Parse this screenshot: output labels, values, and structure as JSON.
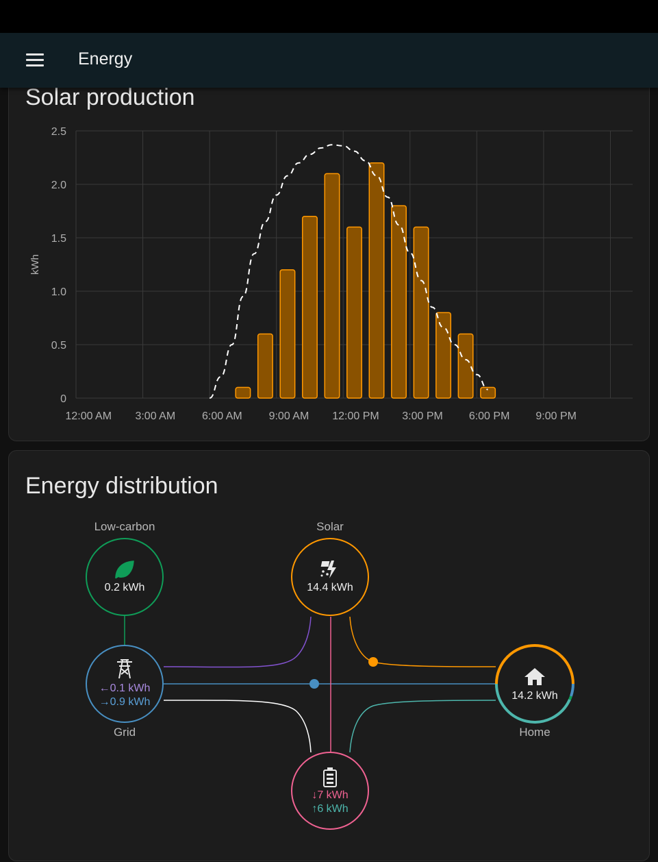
{
  "header": {
    "title": "Energy",
    "menu_icon": "menu-icon"
  },
  "solar_card": {
    "title": "Solar production"
  },
  "chart_data": {
    "type": "bar",
    "ylabel": "kWh",
    "ylim": [
      0,
      2.5
    ],
    "y_ticks": [
      "0",
      "0.5",
      "1.0",
      "1.5",
      "2.0",
      "2.5"
    ],
    "x_tick_labels": [
      "12:00 AM",
      "3:00 AM",
      "6:00 AM",
      "9:00 AM",
      "12:00 PM",
      "3:00 PM",
      "6:00 PM",
      "9:00 PM"
    ],
    "series": [
      {
        "type": "bar",
        "hours": [
          7,
          8,
          9,
          10,
          11,
          12,
          13,
          14,
          15,
          16,
          17,
          18
        ],
        "values": [
          0.1,
          0.6,
          1.2,
          1.7,
          2.1,
          1.6,
          2.2,
          1.8,
          1.6,
          0.8,
          0.6,
          0.1
        ]
      },
      {
        "type": "line",
        "style": "dashed",
        "hours": [
          6.0,
          6.5,
          7.0,
          7.5,
          8.0,
          8.5,
          9.0,
          9.5,
          10.0,
          10.5,
          11.0,
          11.5,
          12.0,
          12.5,
          13.0,
          13.5,
          14.0,
          14.5,
          15.0,
          15.5,
          16.0,
          16.5,
          17.0,
          17.5,
          18.0,
          18.5
        ],
        "values": [
          0.0,
          0.2,
          0.5,
          0.95,
          1.35,
          1.65,
          1.9,
          2.08,
          2.2,
          2.28,
          2.34,
          2.37,
          2.36,
          2.31,
          2.22,
          2.08,
          1.88,
          1.62,
          1.36,
          1.1,
          0.85,
          0.66,
          0.5,
          0.36,
          0.22,
          0.08
        ]
      }
    ],
    "colors": {
      "bar_fill": "#8a5200",
      "bar_stroke": "#ff9800",
      "forecast": "#ffffff",
      "grid": "#3a3a3a"
    }
  },
  "distribution_card": {
    "title": "Energy distribution",
    "low_carbon": {
      "label": "Low-carbon",
      "value": "0.2 kWh",
      "icon": "leaf-icon",
      "color": "#0f9d58"
    },
    "solar": {
      "label": "Solar",
      "value": "14.4 kWh",
      "icon": "solar-power-icon",
      "color": "#ff9800"
    },
    "grid": {
      "label": "Grid",
      "from_grid": "0.1 kWh",
      "to_grid": "0.9 kWh",
      "from_arrow": "←",
      "to_arrow": "→",
      "icon": "transmission-tower-icon",
      "color": "#488fc2"
    },
    "home": {
      "label": "Home",
      "value": "14.2 kWh",
      "icon": "home-icon"
    },
    "battery": {
      "in_value": "7 kWh",
      "out_value": "6 kWh",
      "in_arrow": "↓",
      "out_arrow": "↑",
      "icon": "battery-icon",
      "color": "#f06292"
    },
    "colors": {
      "return_to_grid": "#8353d1",
      "battery_out": "#4db6ac",
      "grid_line": "#488fc2"
    }
  }
}
